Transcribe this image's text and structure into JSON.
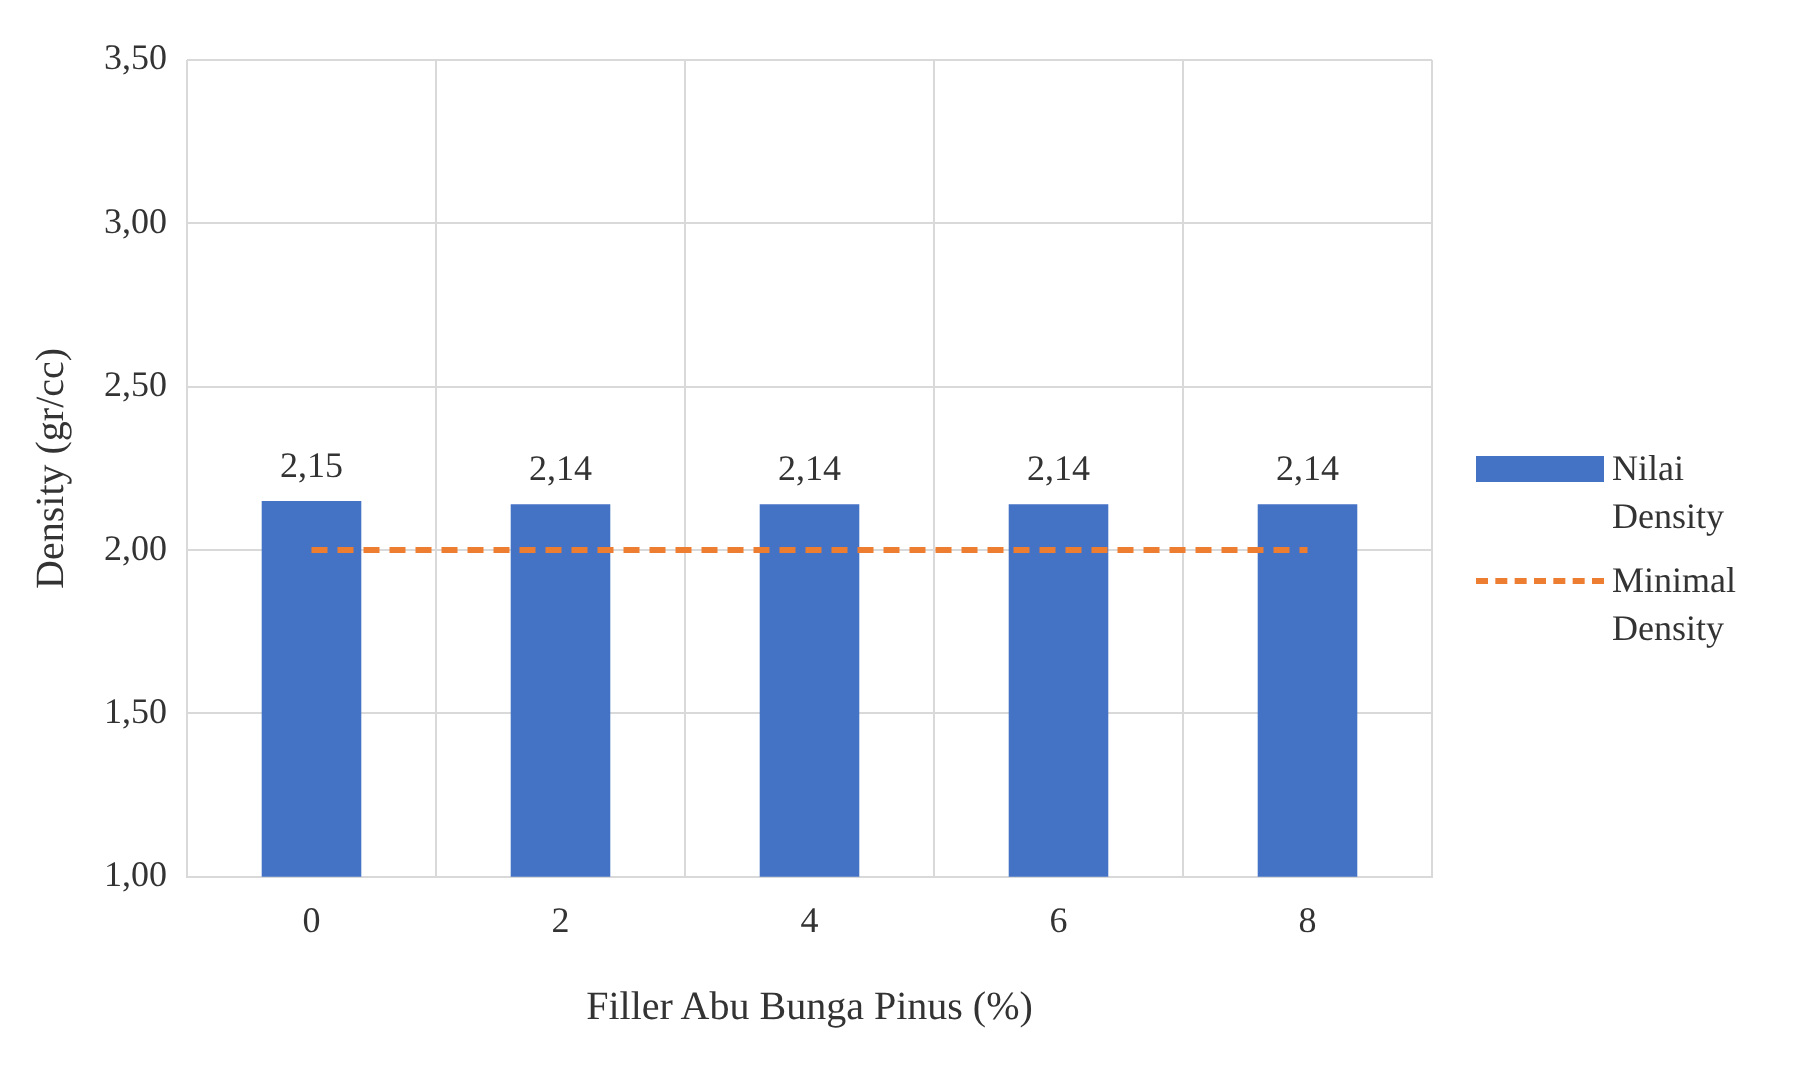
{
  "chart_data": {
    "type": "bar",
    "xlabel": "Filler Abu Bunga Pinus (%)",
    "ylabel": "Density (gr/cc)",
    "categories": [
      "0",
      "2",
      "4",
      "6",
      "8"
    ],
    "series": [
      {
        "name": "Nilai Density",
        "color": "#4472c4",
        "values": [
          2.15,
          2.14,
          2.14,
          2.14,
          2.14
        ],
        "value_labels": [
          "2,15",
          "2,14",
          "2,14",
          "2,14",
          "2,14"
        ]
      },
      {
        "name": "Minimal Density",
        "type": "line",
        "color": "#ed7d31",
        "values": [
          2,
          2,
          2,
          2,
          2
        ],
        "line_style": "dashed",
        "marker": "none"
      }
    ],
    "ylim": [
      1,
      3.5
    ],
    "yticks": [
      {
        "value": 1,
        "label": "1,00"
      },
      {
        "value": 1.5,
        "label": "1,50"
      },
      {
        "value": 2,
        "label": "2,00"
      },
      {
        "value": 2.5,
        "label": "2,50"
      },
      {
        "value": 3,
        "label": "3,00"
      },
      {
        "value": 3.5,
        "label": "3,50"
      }
    ],
    "grid": true,
    "legend": "right"
  }
}
